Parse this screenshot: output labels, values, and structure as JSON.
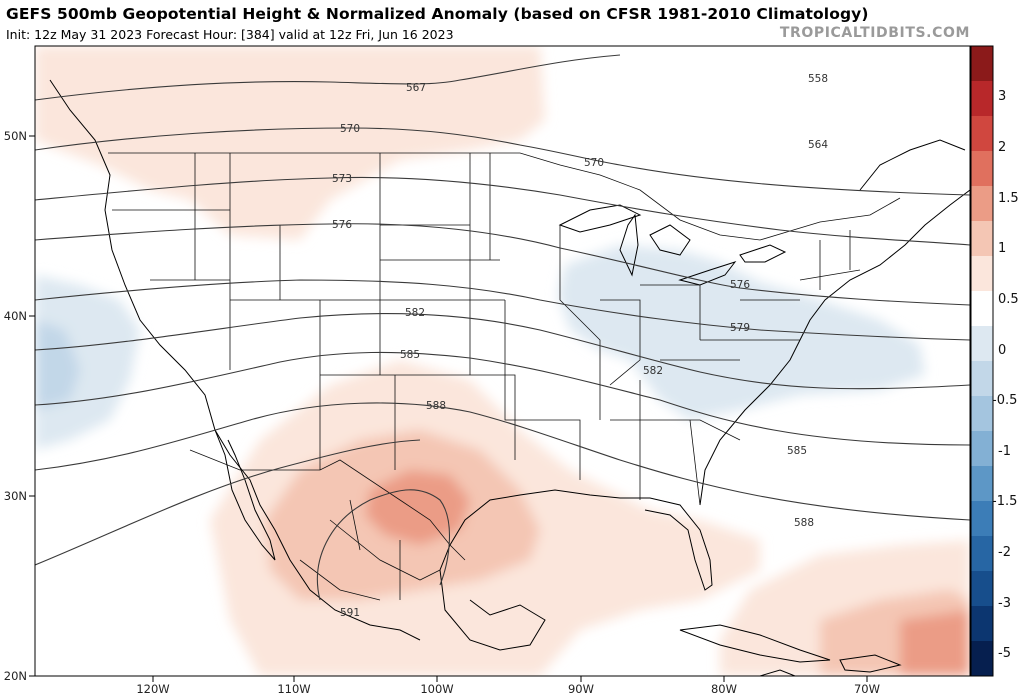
{
  "header": {
    "title": "GEFS 500mb Geopotential Height & Normalized Anomaly (based on CFSR 1981-2010 Climatology)",
    "subtitle": "Init: 12z May 31 2023   Forecast Hour: [384]   valid at 12z Fri, Jun 16 2023",
    "brand": "TROPICALTIDBITS.COM"
  },
  "map": {
    "lat_labels": [
      "50N",
      "40N",
      "30N",
      "20N"
    ],
    "lon_labels": [
      "120W",
      "110W",
      "100W",
      "90W",
      "80W",
      "70W"
    ],
    "contour_labels": [
      "567",
      "570",
      "573",
      "576",
      "558",
      "564",
      "570",
      "576",
      "579",
      "582",
      "582",
      "585",
      "585",
      "588",
      "588",
      "591"
    ]
  },
  "colorbar": {
    "labels": [
      "3",
      "2",
      "1.5",
      "1",
      "0.5",
      "0",
      "-0.5",
      "-1",
      "-1.5",
      "-2",
      "-3",
      "-5"
    ],
    "colors": [
      "#8b1a1a",
      "#b8282a",
      "#d0473f",
      "#e0705e",
      "#eb9c86",
      "#f4c6b4",
      "#fbe6dc",
      "#ffffff",
      "#dde8f1",
      "#c2d7e8",
      "#a4c5df",
      "#83b0d4",
      "#5d97c6",
      "#3c7db7",
      "#2766a4",
      "#174e8c",
      "#0c3670",
      "#061f4f"
    ]
  },
  "colors": {
    "positive_light": "#fbe6dc",
    "positive_mid": "#f4c6b4",
    "positive_strong": "#eb9c86",
    "negative_light": "#dde8f1",
    "negative_mid": "#c2d7e8"
  }
}
